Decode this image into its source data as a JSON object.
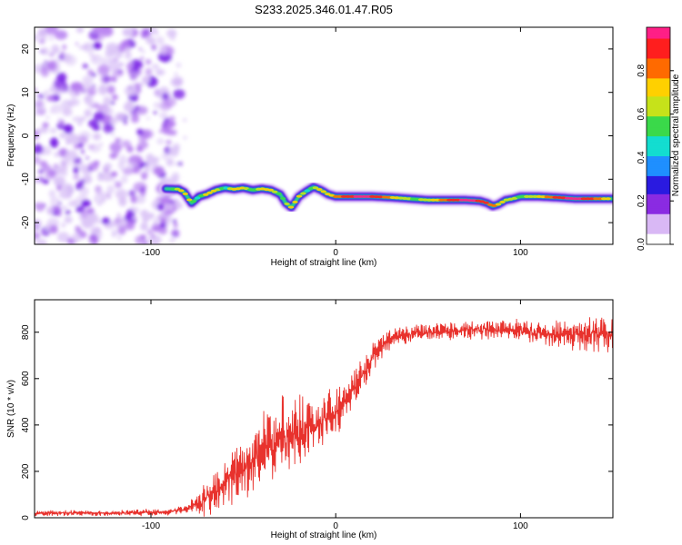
{
  "title": "S233.2025.346.01.47.R05",
  "chart_data": [
    {
      "type": "heatmap",
      "xlabel": "Height of straight line (km)",
      "ylabel": "Frequency (Hz)",
      "xlim": [
        -163,
        150
      ],
      "ylim": [
        -25,
        25
      ],
      "xticks": [
        -100,
        0,
        100
      ],
      "xtick_labels": [
        "-100",
        "0",
        "100"
      ],
      "yticks": [
        20,
        10,
        0,
        -10,
        -20
      ],
      "ytick_labels": [
        "20",
        "10",
        "0",
        "-10",
        "-20"
      ],
      "noise_region_x": [
        -163,
        -85
      ],
      "ridge": {
        "x": [
          -92,
          -85,
          -82,
          -78,
          -74,
          -70,
          -65,
          -60,
          -55,
          -50,
          -45,
          -40,
          -35,
          -30,
          -27,
          -24,
          -20,
          -16,
          -12,
          -8,
          -4,
          0,
          10,
          20,
          30,
          40,
          50,
          60,
          70,
          78,
          82,
          85,
          88,
          92,
          96,
          100,
          110,
          120,
          130,
          140,
          150
        ],
        "freq": [
          -12.2,
          -12.3,
          -13,
          -15.5,
          -14,
          -13.5,
          -12.5,
          -12,
          -12.3,
          -12,
          -12.5,
          -12.2,
          -12.5,
          -13.5,
          -15.5,
          -16.5,
          -14,
          -12.8,
          -11.8,
          -12.5,
          -13.5,
          -14,
          -14,
          -14,
          -14.2,
          -14.5,
          -14.8,
          -14.8,
          -14.8,
          -15,
          -15.5,
          -16.2,
          -15.8,
          -14.8,
          -14.5,
          -14,
          -14,
          -14.2,
          -14.5,
          -14.5,
          -14.5
        ]
      },
      "colorbar": {
        "label": "Normalized spectral amplitude",
        "range": [
          0,
          1
        ],
        "ticks": [
          0,
          0.2,
          0.4,
          0.6,
          0.8
        ],
        "tick_labels": [
          "0.0",
          "0.2",
          "0.4",
          "0.6",
          "0.8"
        ],
        "colors": [
          "#ffffff",
          "#d9b8f5",
          "#8a2be2",
          "#2a1ae0",
          "#1f8fff",
          "#13ddd0",
          "#3ad94a",
          "#c6e21a",
          "#ffd000",
          "#ff6a00",
          "#ff1e1e",
          "#ff1f86"
        ]
      }
    },
    {
      "type": "line",
      "xlabel": "Height of straight line (km)",
      "ylabel": "SNR (10 * v/v)",
      "xlim": [
        -163,
        150
      ],
      "ylim": [
        0,
        940
      ],
      "xticks": [
        -100,
        0,
        100
      ],
      "xtick_labels": [
        "-100",
        "0",
        "100"
      ],
      "yticks": [
        0,
        200,
        400,
        600,
        800
      ],
      "ytick_labels": [
        "0",
        "200",
        "400",
        "600",
        "800"
      ],
      "color": "#e8322d",
      "trend": {
        "x": [
          -163,
          -120,
          -90,
          -80,
          -72,
          -66,
          -60,
          -55,
          -50,
          -45,
          -40,
          -35,
          -30,
          -25,
          -20,
          -15,
          -10,
          -5,
          0,
          5,
          10,
          15,
          20,
          25,
          30,
          40,
          50,
          60,
          70,
          80,
          90,
          100,
          110,
          120,
          130,
          140,
          150
        ],
        "snr": [
          20,
          20,
          25,
          40,
          70,
          110,
          160,
          190,
          220,
          250,
          280,
          310,
          340,
          360,
          370,
          380,
          400,
          430,
          460,
          500,
          560,
          620,
          690,
          740,
          770,
          790,
          800,
          805,
          810,
          810,
          805,
          810,
          790,
          790,
          795,
          790,
          790
        ]
      },
      "spread": {
        "x": [
          -163,
          -90,
          -80,
          -70,
          -60,
          -50,
          -40,
          -30,
          -20,
          -10,
          0,
          10,
          20,
          30,
          40,
          80,
          100,
          120,
          140,
          150
        ],
        "amp": [
          12,
          14,
          25,
          70,
          110,
          140,
          170,
          180,
          150,
          120,
          100,
          80,
          60,
          45,
          40,
          40,
          45,
          60,
          80,
          90
        ]
      },
      "points": 1250
    }
  ]
}
